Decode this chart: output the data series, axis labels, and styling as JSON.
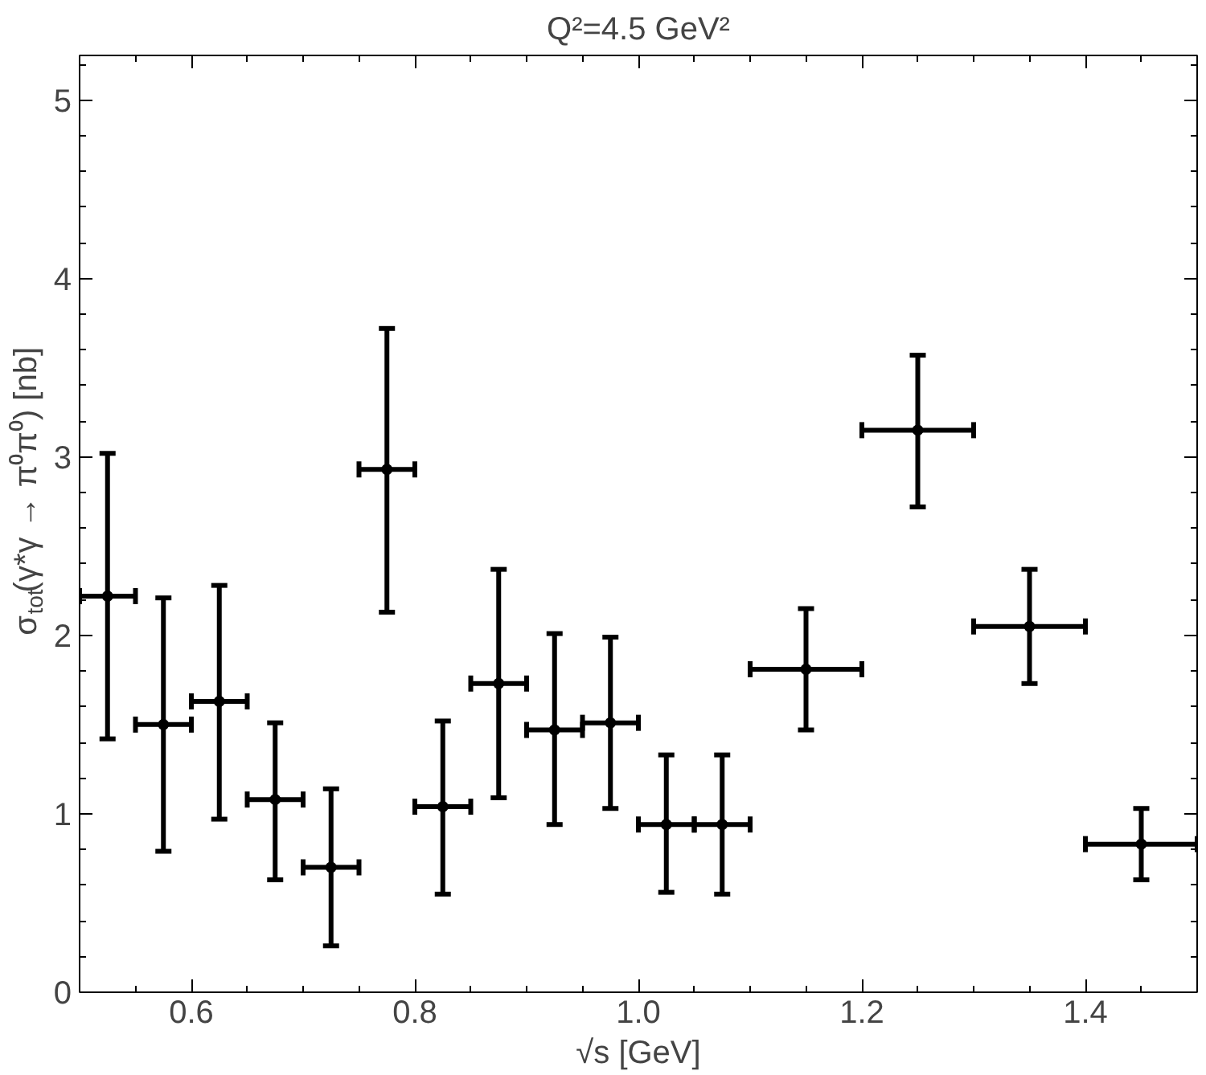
{
  "chart_data": {
    "type": "scatter",
    "title": "Q²=4.5 GeV²",
    "xlabel": "√s [GeV]",
    "ylabel": "σ$_{tot}$(γ*γ → π⁰π⁰) [nb]",
    "x": [
      0.525,
      0.575,
      0.625,
      0.675,
      0.725,
      0.775,
      0.825,
      0.875,
      0.925,
      0.975,
      1.025,
      1.075,
      1.15,
      1.25,
      1.35,
      1.45
    ],
    "series": [
      {
        "color": "#000000",
        "values": [
          2.22,
          1.5,
          1.63,
          1.08,
          0.7,
          2.93,
          1.04,
          1.73,
          1.47,
          1.51,
          0.94,
          0.94,
          1.81,
          3.15,
          2.05,
          0.83
        ],
        "errors": [
          [
            1.42,
            3.02
          ],
          [
            0.79,
            2.21
          ],
          [
            0.97,
            2.28
          ],
          [
            0.63,
            1.51
          ],
          [
            0.26,
            1.14
          ],
          [
            2.13,
            3.72
          ],
          [
            0.55,
            1.52
          ],
          [
            1.09,
            2.37
          ],
          [
            0.94,
            2.01
          ],
          [
            1.03,
            1.99
          ],
          [
            0.56,
            1.33
          ],
          [
            0.55,
            1.33
          ],
          [
            1.47,
            2.15
          ],
          [
            2.72,
            3.57
          ],
          [
            1.73,
            2.37
          ],
          [
            0.63,
            1.03
          ]
        ],
        "xerrors": [
          0.025,
          0.025,
          0.025,
          0.025,
          0.025,
          0.025,
          0.025,
          0.025,
          0.025,
          0.025,
          0.025,
          0.025,
          0.05,
          0.05,
          0.05,
          0.05
        ]
      }
    ],
    "xlim": [
      0.5,
      1.5
    ],
    "ylim": [
      0,
      5.25
    ],
    "xticks": [
      0.6,
      0.8,
      {
        "value": 1.0,
        "label": "1.0"
      },
      1.2,
      1.4
    ],
    "yticks": [
      0,
      1,
      2,
      3,
      4,
      5
    ],
    "marker": "circle",
    "grid": false
  }
}
